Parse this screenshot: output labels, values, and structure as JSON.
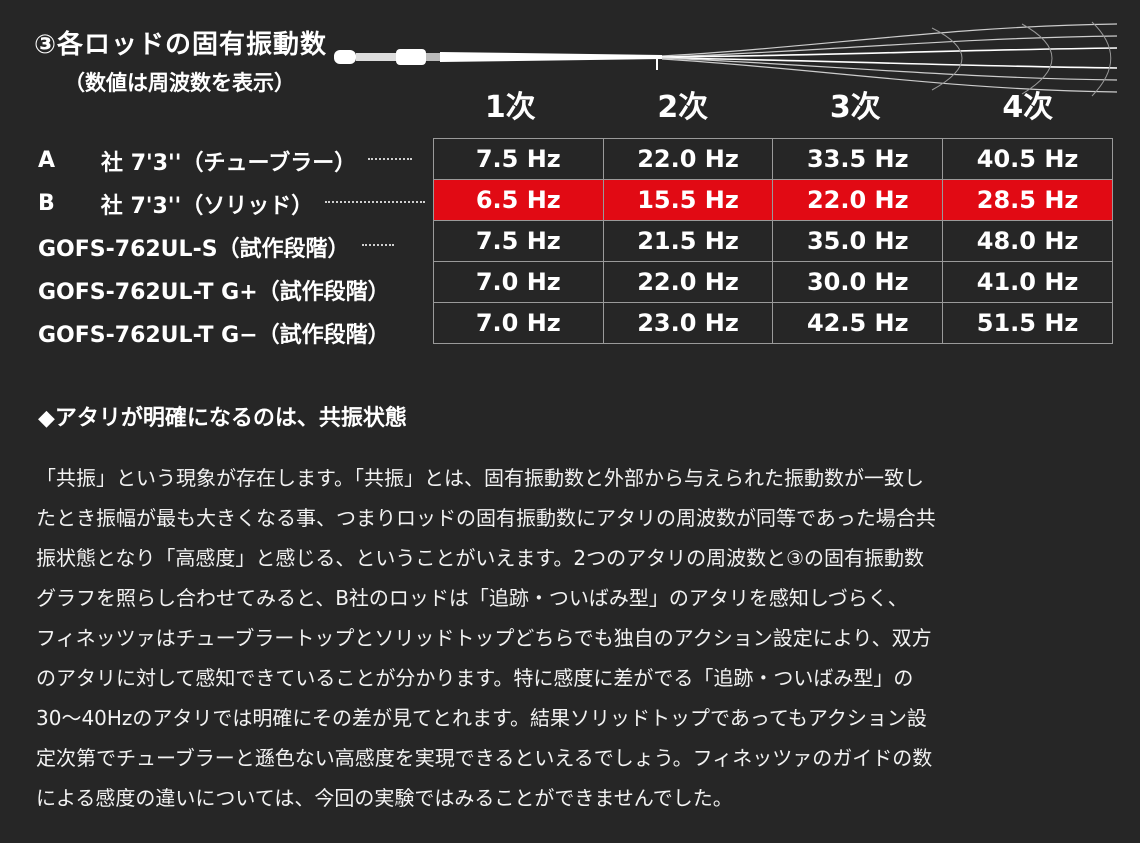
{
  "title": "③各ロッドの固有振動数",
  "subtitle": "（数値は周波数を表示）",
  "columns": [
    "1次",
    "2次",
    "3次",
    "4次"
  ],
  "rows": [
    {
      "maker": "A",
      "name": "社 7'3''（チューブラー）",
      "values": [
        "7.5 Hz",
        "22.0 Hz",
        "33.5 Hz",
        "40.5 Hz"
      ],
      "highlight": false
    },
    {
      "maker": "B",
      "name": "社 7'3''（ソリッド）",
      "values": [
        "6.5 Hz",
        "15.5 Hz",
        "22.0 Hz",
        "28.5 Hz"
      ],
      "highlight": true
    },
    {
      "maker": "",
      "name": "GOFS-762UL-S（試作段階）",
      "values": [
        "7.5 Hz",
        "21.5 Hz",
        "35.0 Hz",
        "48.0 Hz"
      ],
      "highlight": false
    },
    {
      "maker": "",
      "name": "GOFS-762UL-T G+（試作段階）",
      "values": [
        "7.0 Hz",
        "22.0 Hz",
        "30.0 Hz",
        "41.0 Hz"
      ],
      "highlight": false
    },
    {
      "maker": "",
      "name": "GOFS-762UL-T G−（試作段階）",
      "values": [
        "7.0 Hz",
        "23.0 Hz",
        "42.5 Hz",
        "51.5 Hz"
      ],
      "highlight": false
    }
  ],
  "highlight_color": "#e10a14",
  "section_heading": "◆アタリが明確になるのは、共振状態",
  "body_text": "「共振」という現象が存在します。「共振」とは、固有振動数と外部から与えられた振動数が一致し\nたとき振幅が最も大きくなる事、つまりロッドの固有振動数にアタリの周波数が同等であった場合共\n振状態となり「高感度」と感じる、ということがいえます。2つのアタリの周波数と③の固有振動数\nグラフを照らし合わせてみると、B社のロッドは「追跡・ついばみ型」のアタリを感知しづらく、\nフィネッツァはチューブラートップとソリッドトップどちらでも独自のアクション設定により、双方\nのアタリに対して感知できていることが分かります。特に感度に差がでる「追跡・ついばみ型」の\n30〜40Hzのアタリでは明確にその差が見てとれます。結果ソリッドトップであってもアクション設\n定次第でチューブラーと遜色ない高感度を実現できるといえるでしょう。フィネッツァのガイドの数\nによる感度の違いについては、今回の実験ではみることができませんでした。"
}
